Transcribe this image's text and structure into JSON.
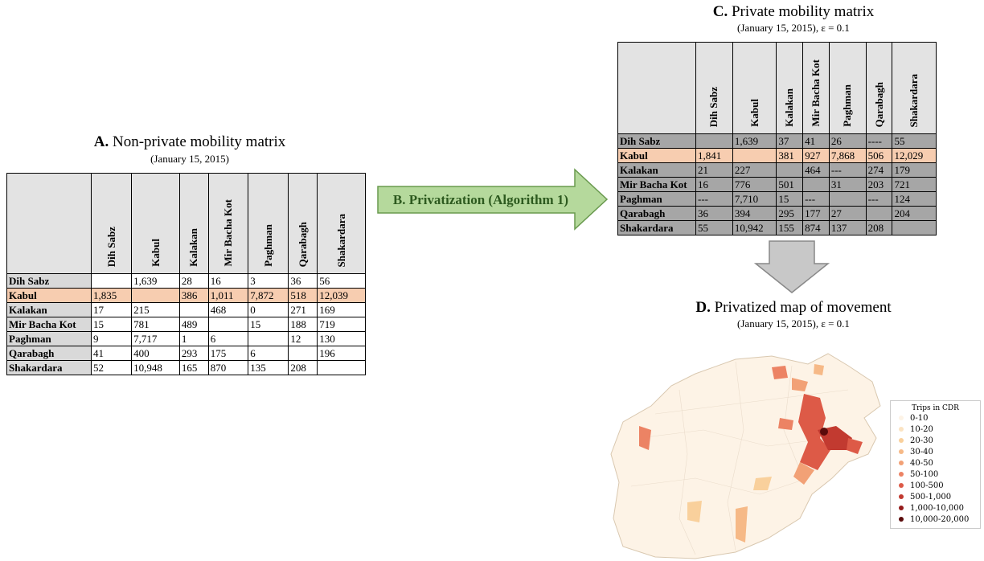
{
  "panel_a": {
    "letter": "A.",
    "title": "Non-private mobility matrix",
    "subtitle": "(January 15, 2015)",
    "columns": [
      "Dih Sabz",
      "Kabul",
      "Kalakan",
      "Mir Bacha Kot",
      "Paghman",
      "Qarabagh",
      "Shakardara"
    ],
    "rows": [
      {
        "label": "Dih Sabz",
        "cells": [
          null,
          "1,639",
          "28",
          "16",
          "3",
          "36",
          "56"
        ]
      },
      {
        "label": "Kabul",
        "cells": [
          "1,835",
          null,
          "386",
          "1,011",
          "7,872",
          "518",
          "12,039"
        ]
      },
      {
        "label": "Kalakan",
        "cells": [
          "17",
          "215",
          null,
          "468",
          "0",
          "271",
          "169"
        ]
      },
      {
        "label": "Mir Bacha Kot",
        "cells": [
          "15",
          "781",
          "489",
          null,
          "15",
          "188",
          "719"
        ]
      },
      {
        "label": "Paghman",
        "cells": [
          "9",
          "7,717",
          "1",
          "6",
          null,
          "12",
          "130"
        ]
      },
      {
        "label": "Qarabagh",
        "cells": [
          "41",
          "400",
          "293",
          "175",
          "6",
          null,
          "196"
        ]
      },
      {
        "label": "Shakardara",
        "cells": [
          "52",
          "10,948",
          "165",
          "870",
          "135",
          "208",
          null
        ]
      }
    ]
  },
  "arrow_b": {
    "label": "B. Privatization (Algorithm 1)"
  },
  "panel_c": {
    "letter": "C.",
    "title": "Private mobility matrix",
    "subtitle": "(January 15, 2015), ε = 0.1",
    "columns": [
      "Dih Sabz",
      "Kabul",
      "Kalakan",
      "Mir Bacha Kot",
      "Paghman",
      "Qarabagh",
      "Shakardara"
    ],
    "rows": [
      {
        "label": "Dih Sabz",
        "cells": [
          null,
          "1,639",
          "37",
          "41",
          "26",
          "----",
          "55"
        ]
      },
      {
        "label": "Kabul",
        "cells": [
          "1,841",
          null,
          "381",
          "927",
          "7,868",
          "506",
          "12,029"
        ]
      },
      {
        "label": "Kalakan",
        "cells": [
          "21",
          "227",
          null,
          "464",
          "---",
          "274",
          "179"
        ]
      },
      {
        "label": "Mir Bacha Kot",
        "cells": [
          "16",
          "776",
          "501",
          null,
          "31",
          "203",
          "721"
        ]
      },
      {
        "label": "Paghman",
        "cells": [
          "---",
          "7,710",
          "15",
          "---",
          null,
          "---",
          "124"
        ]
      },
      {
        "label": "Qarabagh",
        "cells": [
          "36",
          "394",
          "295",
          "177",
          "27",
          null,
          "204"
        ]
      },
      {
        "label": "Shakardara",
        "cells": [
          "55",
          "10,942",
          "155",
          "874",
          "137",
          "208",
          null
        ]
      }
    ]
  },
  "panel_d": {
    "letter": "D.",
    "title": "Privatized map of movement",
    "subtitle": "(January 15, 2015), ε = 0.1",
    "legend": {
      "title": "Trips in CDR",
      "items": [
        {
          "label": "0-10",
          "color": "#fdf3e6"
        },
        {
          "label": "10-20",
          "color": "#fbe3c2"
        },
        {
          "label": "20-30",
          "color": "#f9d09c"
        },
        {
          "label": "30-40",
          "color": "#f6b987"
        },
        {
          "label": "40-50",
          "color": "#f2a176"
        },
        {
          "label": "50-100",
          "color": "#ec8364"
        },
        {
          "label": "100-500",
          "color": "#dd5a47"
        },
        {
          "label": "500-1,000",
          "color": "#c23a30"
        },
        {
          "label": "1,000-10,000",
          "color": "#951b1b"
        },
        {
          "label": "10,000-20,000",
          "color": "#5a0b0b"
        }
      ]
    }
  }
}
